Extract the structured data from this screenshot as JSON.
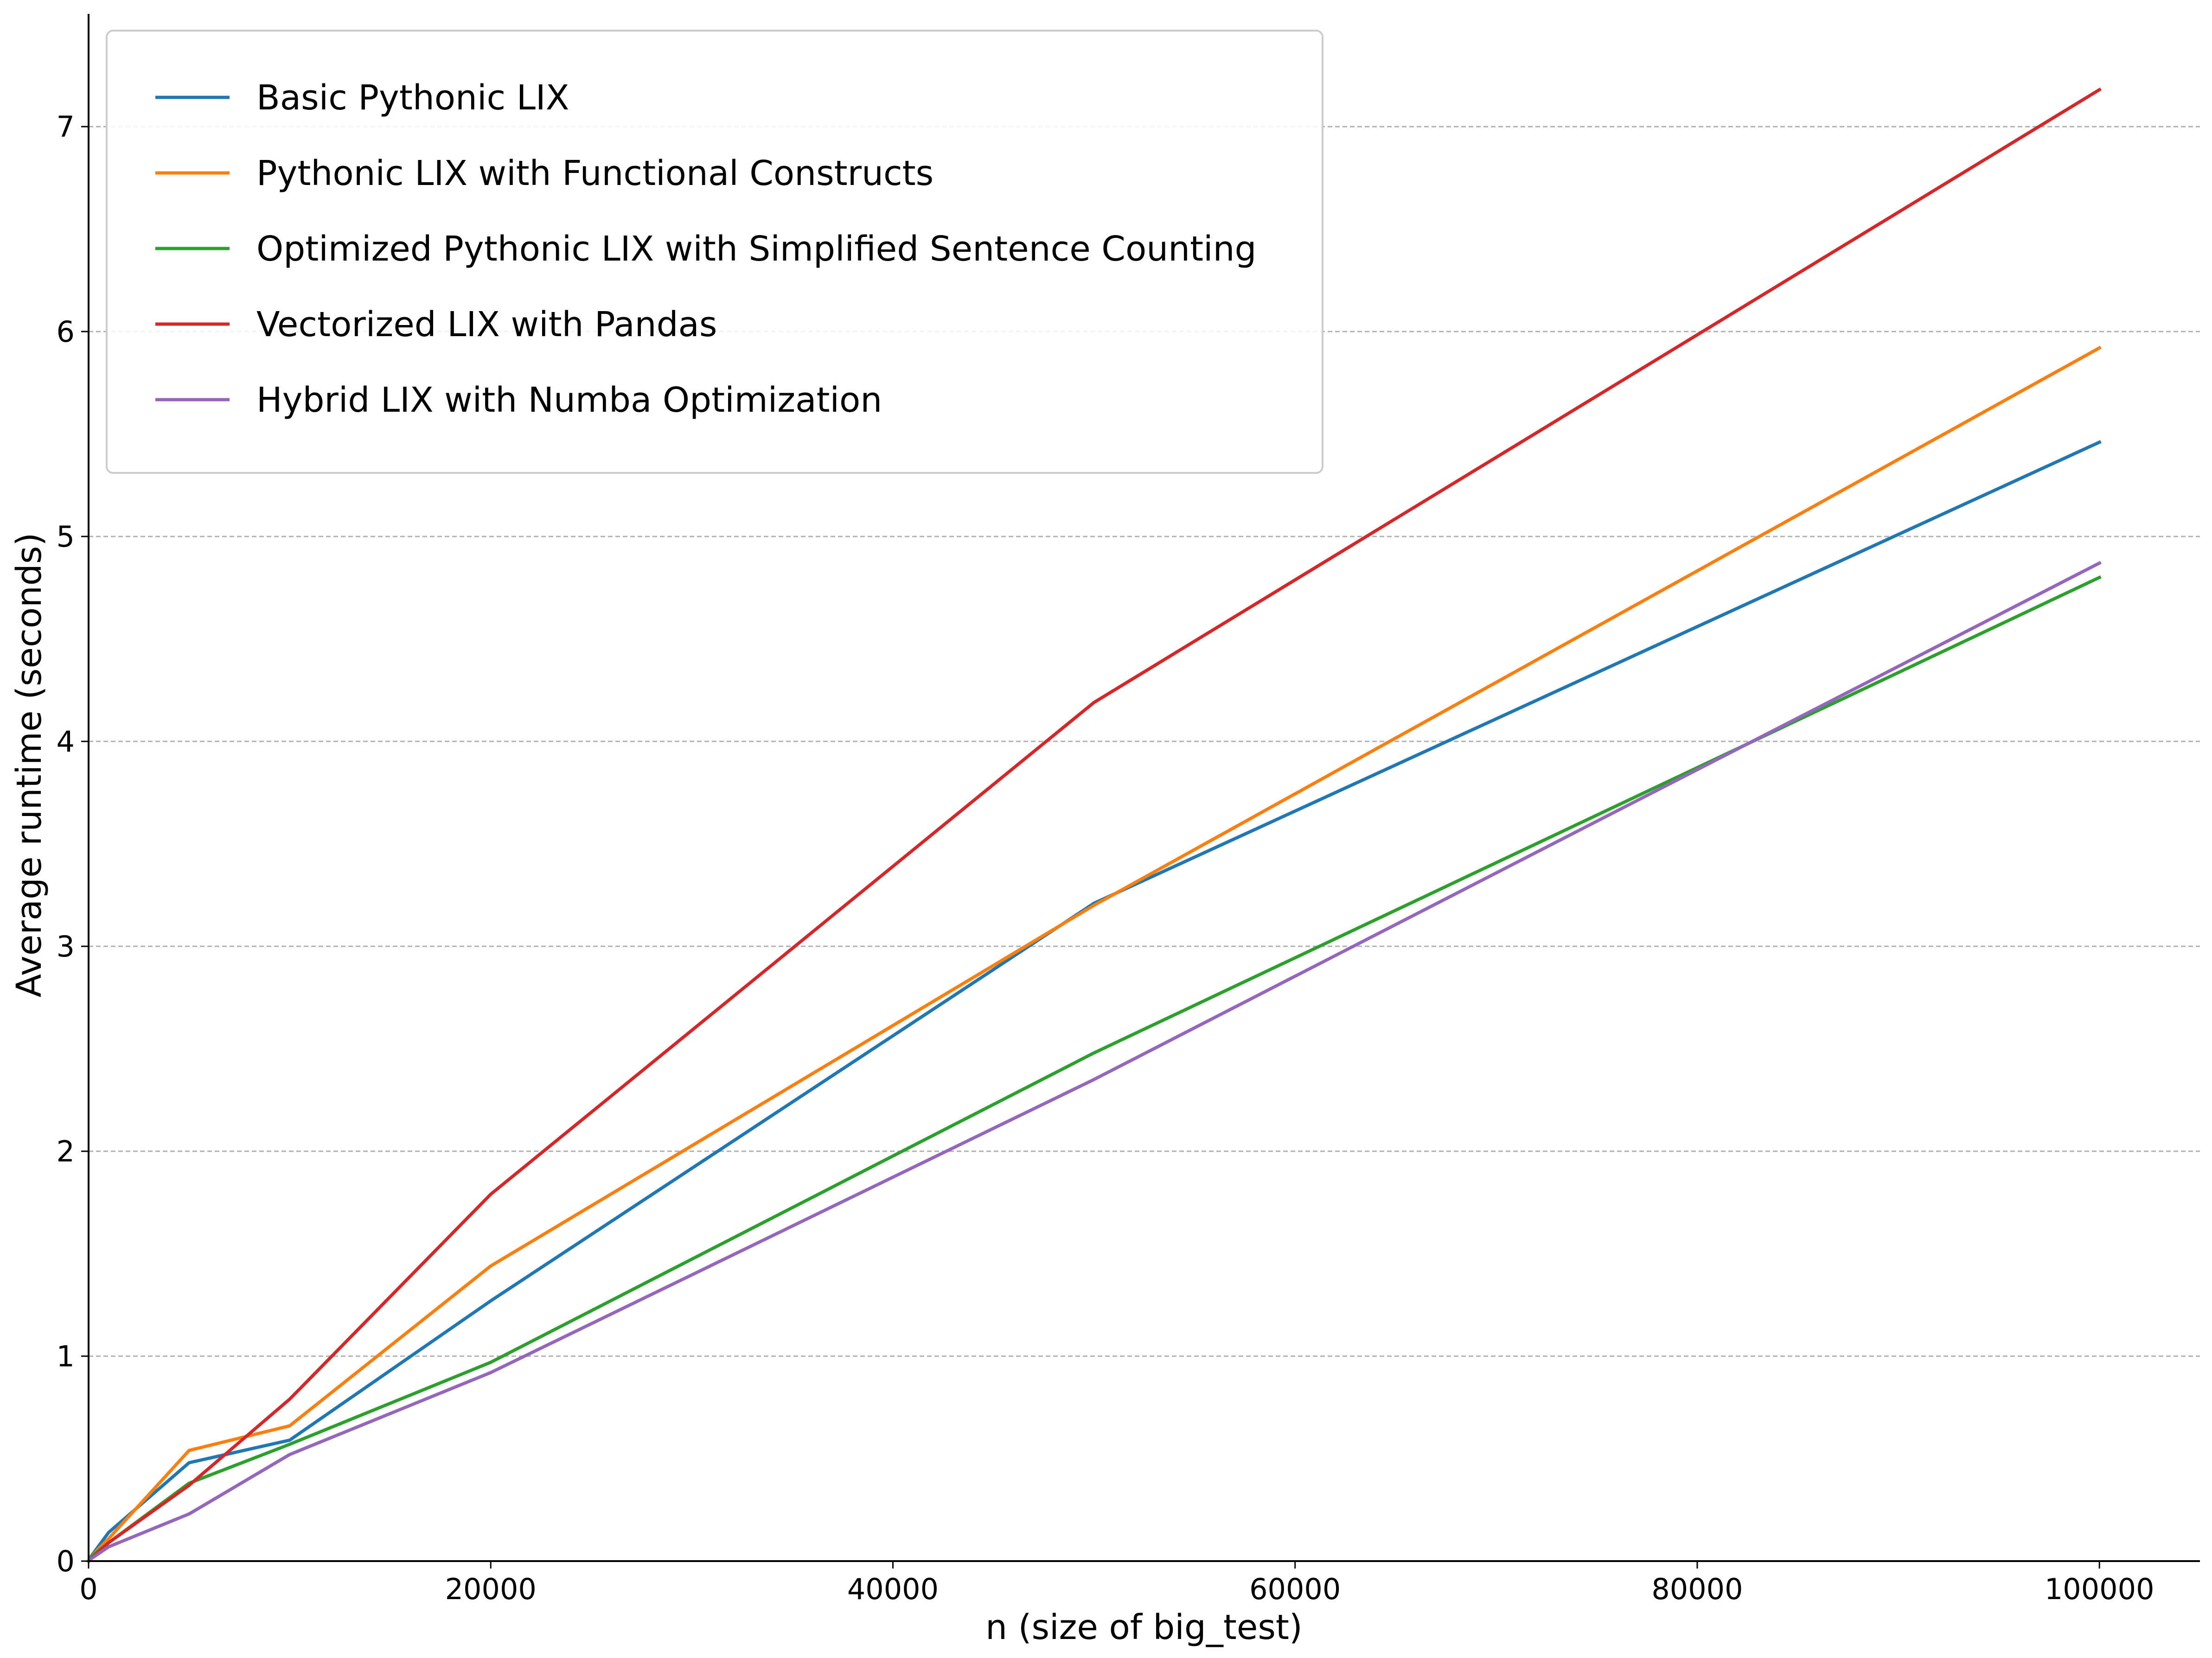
{
  "chart_data": {
    "type": "line",
    "title": "",
    "xlabel": "n (size of big_test)",
    "ylabel": "Average runtime (seconds)",
    "xlim": [
      0,
      105000
    ],
    "ylim": [
      0,
      7.55
    ],
    "xticks": [
      0,
      20000,
      40000,
      60000,
      80000,
      100000
    ],
    "xtick_labels": [
      "0",
      "20000",
      "40000",
      "60000",
      "80000",
      "100000"
    ],
    "yticks": [
      0,
      1,
      2,
      3,
      4,
      5,
      6,
      7
    ],
    "ytick_labels": [
      "0",
      "1",
      "2",
      "3",
      "4",
      "5",
      "6",
      "7"
    ],
    "grid": {
      "y": true,
      "x": false,
      "style": "dashed"
    },
    "legend_position": "top-left",
    "x": [
      100,
      1000,
      5000,
      10000,
      20000,
      50000,
      100000
    ],
    "series": [
      {
        "name": "Basic Pythonic LIX",
        "color": "#1f77b4",
        "values": [
          0.02,
          0.14,
          0.48,
          0.59,
          1.27,
          3.21,
          5.46
        ]
      },
      {
        "name": "Pythonic LIX with Functional Constructs",
        "color": "#ff7f0e",
        "values": [
          0.02,
          0.11,
          0.54,
          0.66,
          1.44,
          3.2,
          5.92
        ]
      },
      {
        "name": "Optimized Pythonic LIX with Simplified Sentence Counting",
        "color": "#2ca02c",
        "values": [
          0.02,
          0.09,
          0.38,
          0.57,
          0.97,
          2.48,
          4.8
        ]
      },
      {
        "name": "Vectorized LIX with Pandas",
        "color": "#d62728",
        "values": [
          0.01,
          0.09,
          0.37,
          0.79,
          1.79,
          4.19,
          7.18
        ]
      },
      {
        "name": "Hybrid LIX with Numba Optimization",
        "color": "#9467bd",
        "values": [
          0.01,
          0.07,
          0.23,
          0.52,
          0.92,
          2.35,
          4.87
        ]
      }
    ]
  }
}
